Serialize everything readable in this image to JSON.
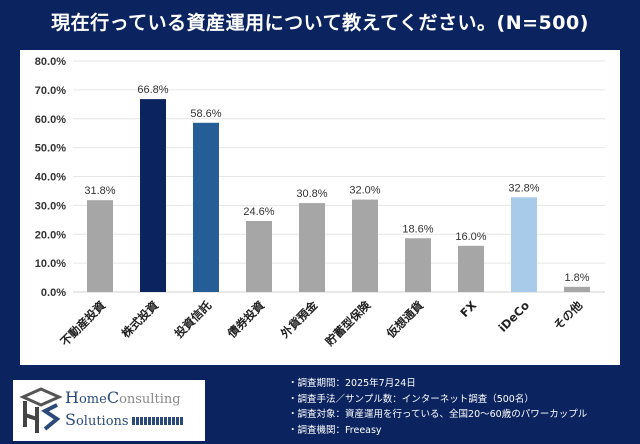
{
  "title": "現在行っている資産運用について教えてください。(N=500)",
  "chart_data": {
    "type": "bar",
    "categories": [
      "不動産投資",
      "株式投資",
      "投資信託",
      "債券投資",
      "外貨預金",
      "貯蓄型保険",
      "仮想通貨",
      "FX",
      "iDeCo",
      "その他"
    ],
    "values": [
      31.8,
      66.8,
      58.6,
      24.6,
      30.8,
      32.0,
      18.6,
      16.0,
      32.8,
      1.8
    ],
    "data_labels": [
      "31.8%",
      "66.8%",
      "58.6%",
      "24.6%",
      "30.8%",
      "32.0%",
      "18.6%",
      "16.0%",
      "32.8%",
      "1.8%"
    ],
    "bar_colors": [
      "#a6a6a6",
      "#0b2460",
      "#255e96",
      "#a6a6a6",
      "#a6a6a6",
      "#a6a6a6",
      "#a6a6a6",
      "#a6a6a6",
      "#a8cbea",
      "#a6a6a6"
    ],
    "ylim": [
      0,
      80
    ],
    "yticks": [
      "0.0%",
      "10.0%",
      "20.0%",
      "30.0%",
      "40.0%",
      "50.0%",
      "60.0%",
      "70.0%",
      "80.0%"
    ],
    "grid": true,
    "xlabel": "",
    "ylabel": ""
  },
  "logo": {
    "line1a": "H",
    "line1b": "ome",
    "line1c": "C",
    "line1d": "onsulting",
    "line2a": "S",
    "line2b": "olutions"
  },
  "notes": [
    "・調査期間：2025年7月24日",
    "・調査手法／サンプル数：インターネット調査（500名）",
    "・調査対象：資産運用を行っている、全国20〜60歳のパワーカップル",
    "・調査機関：Freeasy"
  ]
}
